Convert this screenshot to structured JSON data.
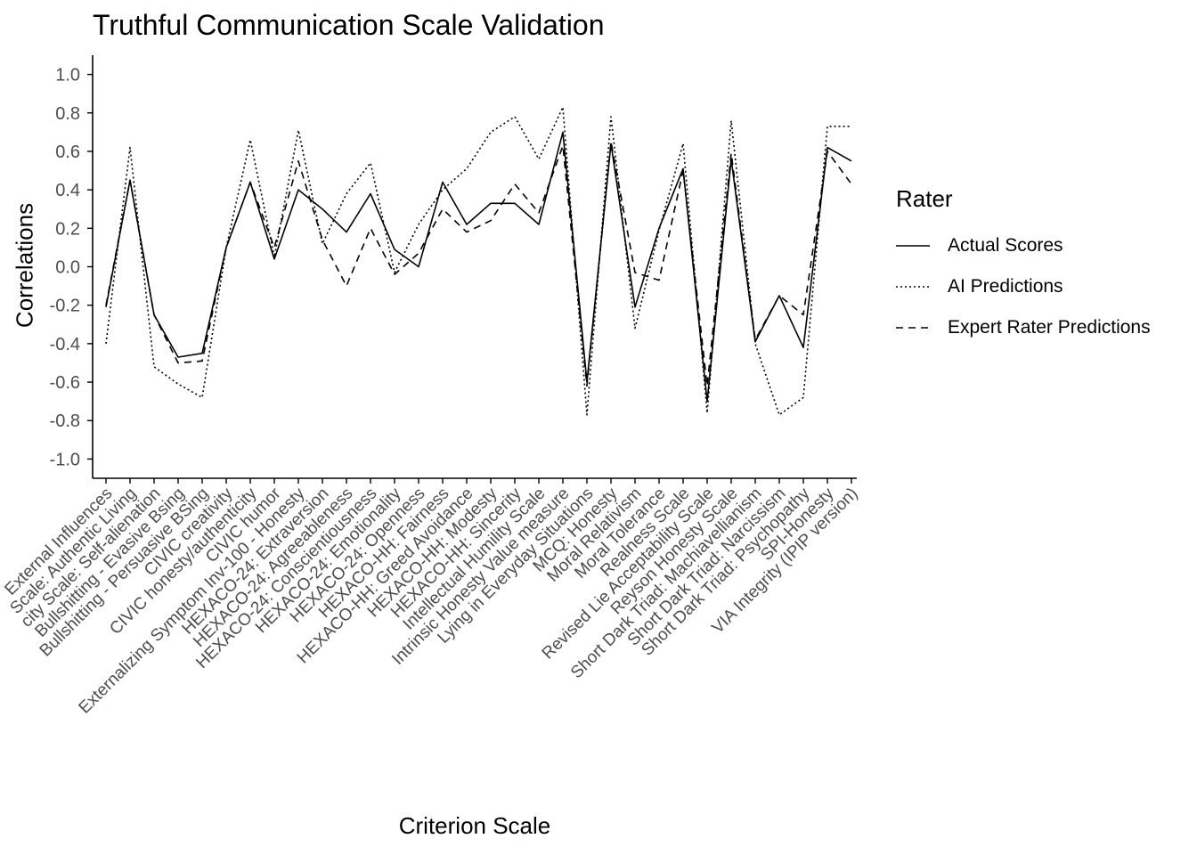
{
  "chart_data": {
    "type": "line",
    "title": "Truthful Communication Scale Validation",
    "xlabel": "Criterion Scale",
    "ylabel": "Correlations",
    "ylim": [
      -1.1,
      1.1
    ],
    "yticks": [
      "1.0",
      "0.8",
      "0.6",
      "0.4",
      "0.2",
      "0.0",
      "-0.2",
      "-0.4",
      "-0.6",
      "-0.8",
      "-1.0"
    ],
    "ytick_values": [
      1.0,
      0.8,
      0.6,
      0.4,
      0.2,
      0.0,
      -0.2,
      -0.4,
      -0.6,
      -0.8,
      -1.0
    ],
    "grid": false,
    "legend_position": "right",
    "legend_title": "Rater",
    "categories": [
      "External Influences",
      "Scale: Authentic Living",
      "city Scale: Self-alienation",
      "Bullshitting - Evasive Bsing",
      "Bullshitting - Persuasive BSing",
      "CIVIC creativity",
      "CIVIC honesty/authenticity",
      "CIVIC humor",
      "Externalizing Symptom Inv-100 - Honesty",
      "HEXACO-24: Extraversion",
      "HEXACO-24: Agreeableness",
      "HEXACO-24: Conscientiousness",
      "HEXACO-24: Emotionality",
      "HEXACO-24: Openness",
      "HEXACO-HH: Fairness",
      "HEXACO-HH: Greed Avoidance",
      "HEXACO-HH: Modesty",
      "HEXACO-HH: Sincerity",
      "Intellectual Humility Scale",
      "Intrinsic Honesty Value measure",
      "Lying in Everyday Situations",
      "MCQ: Honesty",
      "Moral Relativism",
      "Moral Tolerance",
      "Realness Scale",
      "Revised Lie Acceptability Scale",
      "Reyson Honesty Scale",
      "Short Dark Triad: Machiavellianism",
      "Short Dark Triad: Narcissism",
      "Short Dark Triad: Psychopathy",
      "SPI-Honesty",
      "VIA Integrity (IPIP version)"
    ],
    "series": [
      {
        "name": "Actual Scores",
        "dash": "solid",
        "values": [
          -0.21,
          0.45,
          -0.25,
          -0.47,
          -0.45,
          0.1,
          0.44,
          0.04,
          0.4,
          0.3,
          0.18,
          0.38,
          0.09,
          0.0,
          0.44,
          0.22,
          0.33,
          0.33,
          0.22,
          0.7,
          -0.6,
          0.64,
          -0.21,
          0.2,
          0.51,
          -0.7,
          0.56,
          -0.39,
          -0.15,
          -0.42,
          0.62,
          0.55
        ]
      },
      {
        "name": "AI Predictions",
        "dash": "dotted",
        "values": [
          -0.4,
          0.62,
          -0.52,
          -0.61,
          -0.68,
          0.1,
          0.66,
          0.05,
          0.71,
          0.12,
          0.38,
          0.54,
          -0.03,
          0.22,
          0.4,
          0.51,
          0.7,
          0.78,
          0.56,
          0.83,
          -0.77,
          0.78,
          -0.32,
          0.19,
          0.64,
          -0.76,
          0.76,
          -0.4,
          -0.77,
          -0.68,
          0.73,
          0.73
        ]
      },
      {
        "name": "Expert Rater Predictions",
        "dash": "dashed",
        "values": [
          -0.2,
          0.45,
          -0.25,
          -0.5,
          -0.49,
          0.1,
          0.44,
          0.1,
          0.55,
          0.14,
          -0.1,
          0.2,
          -0.04,
          0.07,
          0.3,
          0.18,
          0.24,
          0.43,
          0.28,
          0.63,
          -0.62,
          0.65,
          -0.03,
          -0.07,
          0.5,
          -0.62,
          0.59,
          -0.38,
          -0.15,
          -0.25,
          0.6,
          0.43
        ]
      }
    ]
  }
}
